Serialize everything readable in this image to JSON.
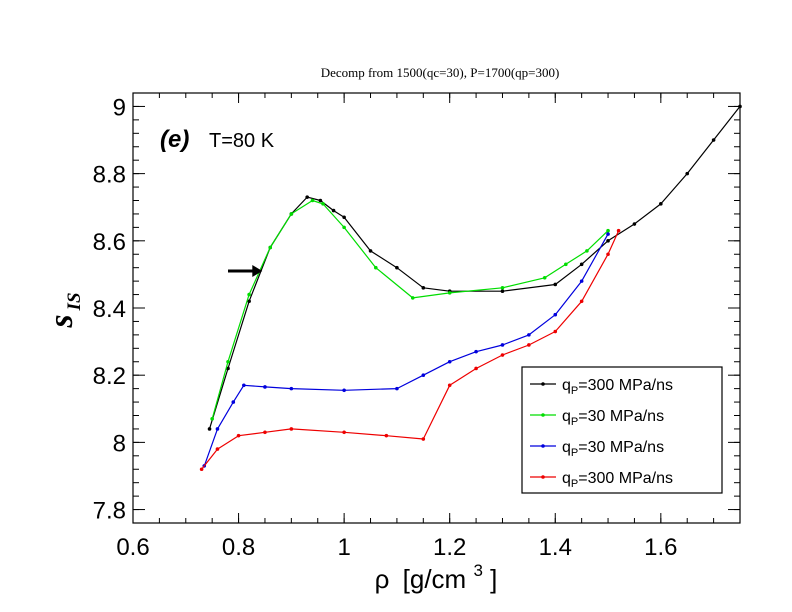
{
  "chart_data": {
    "type": "line",
    "title": "Decomp from 1500(qc=30), P=1700(qp=300)",
    "panel_label": "(e)",
    "annotation": "T=80 K",
    "xlabel": {
      "symbol": "ρ",
      "units": "[g/cm",
      "superscript": "3",
      "close": "]"
    },
    "ylabel": {
      "main": "s",
      "subscript": "IS"
    },
    "xlim": [
      0.6,
      1.75
    ],
    "ylim": [
      7.76,
      9.04
    ],
    "xticks": [
      {
        "value": 0.6,
        "label": "0.6"
      },
      {
        "value": 0.8,
        "label": "0.8"
      },
      {
        "value": 1.0,
        "label": "1"
      },
      {
        "value": 1.2,
        "label": "1.2"
      },
      {
        "value": 1.4,
        "label": "1.4"
      },
      {
        "value": 1.6,
        "label": "1.6"
      }
    ],
    "yticks": [
      {
        "value": 7.8,
        "label": "7.8"
      },
      {
        "value": 8.0,
        "label": "8"
      },
      {
        "value": 8.2,
        "label": "8.2"
      },
      {
        "value": 8.4,
        "label": "8.4"
      },
      {
        "value": 8.6,
        "label": "8.6"
      },
      {
        "value": 8.8,
        "label": "8.8"
      },
      {
        "value": 9.0,
        "label": "9"
      }
    ],
    "arrow": {
      "from": [
        0.78,
        8.51
      ],
      "to": [
        0.845,
        8.51
      ]
    },
    "series": [
      {
        "name": "q_P=300 MPa/ns",
        "label_main": "q",
        "label_sub": "P",
        "label_rest": "=300 MPa/ns",
        "color": "#000000",
        "x": [
          0.745,
          0.78,
          0.82,
          0.86,
          0.9,
          0.93,
          0.955,
          0.98,
          1.0,
          1.05,
          1.1,
          1.15,
          1.2,
          1.3,
          1.4,
          1.45,
          1.5,
          1.55,
          1.6,
          1.65,
          1.7,
          1.75
        ],
        "y": [
          8.04,
          8.22,
          8.42,
          8.58,
          8.68,
          8.73,
          8.72,
          8.69,
          8.67,
          8.57,
          8.52,
          8.46,
          8.45,
          8.45,
          8.47,
          8.53,
          8.6,
          8.65,
          8.71,
          8.8,
          8.9,
          9.0
        ]
      },
      {
        "name": "q_P=30 MPa/ns",
        "label_main": "q",
        "label_sub": "P",
        "label_rest": "=30 MPa/ns",
        "color": "#00dd00",
        "x": [
          0.75,
          0.78,
          0.82,
          0.86,
          0.9,
          0.94,
          0.96,
          1.0,
          1.06,
          1.13,
          1.2,
          1.3,
          1.38,
          1.42,
          1.46,
          1.5
        ],
        "y": [
          8.07,
          8.24,
          8.44,
          8.58,
          8.68,
          8.72,
          8.71,
          8.64,
          8.52,
          8.43,
          8.445,
          8.46,
          8.49,
          8.53,
          8.57,
          8.63
        ]
      },
      {
        "name": "q_P=30 MPa/ns",
        "label_main": "q",
        "label_sub": "P",
        "label_rest": "=30 MPa/ns",
        "color": "#0000dd",
        "x": [
          0.735,
          0.76,
          0.79,
          0.81,
          0.85,
          0.9,
          1.0,
          1.1,
          1.15,
          1.2,
          1.25,
          1.3,
          1.35,
          1.4,
          1.45,
          1.5
        ],
        "y": [
          7.93,
          8.04,
          8.12,
          8.17,
          8.165,
          8.16,
          8.155,
          8.16,
          8.2,
          8.24,
          8.27,
          8.29,
          8.32,
          8.38,
          8.48,
          8.62
        ]
      },
      {
        "name": "q_P=300 MPa/ns",
        "label_main": "q",
        "label_sub": "P",
        "label_rest": "=300 MPa/ns",
        "color": "#ee0000",
        "x": [
          0.73,
          0.76,
          0.8,
          0.85,
          0.9,
          1.0,
          1.08,
          1.15,
          1.2,
          1.25,
          1.3,
          1.35,
          1.4,
          1.45,
          1.5,
          1.52
        ],
        "y": [
          7.92,
          7.98,
          8.02,
          8.03,
          8.04,
          8.03,
          8.02,
          8.01,
          8.17,
          8.22,
          8.26,
          8.29,
          8.33,
          8.42,
          8.56,
          8.63
        ]
      }
    ],
    "legend": {
      "position": "bottom-right"
    }
  }
}
